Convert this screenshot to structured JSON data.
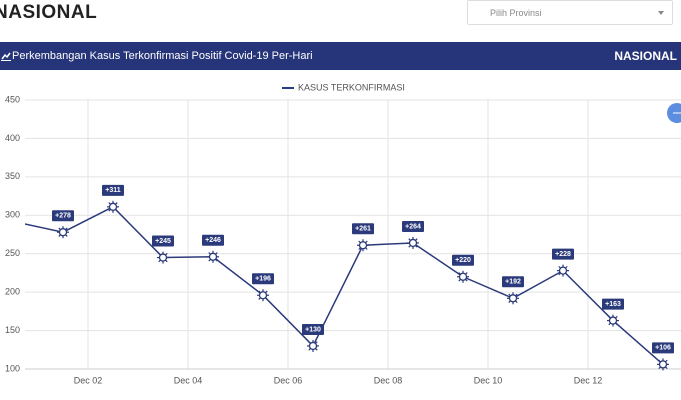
{
  "header": {
    "title": "NASIONAL",
    "select_placeholder": "Pilih Provinsi"
  },
  "panel": {
    "title": "Perkembangan Kasus Terkonfirmasi Positif Covid-19 Per-Hari",
    "region": "NASIONAL"
  },
  "chart_data": {
    "type": "line",
    "categories": [
      null,
      null,
      null,
      null,
      null,
      null,
      null,
      null,
      null,
      null,
      null,
      null,
      null,
      null
    ],
    "series": [
      {
        "name": "KASUS TERKONFIRMASI",
        "color": "#2b3a7a",
        "values": [
          292,
          278,
          311,
          245,
          246,
          196,
          130,
          261,
          264,
          220,
          192,
          228,
          163,
          106
        ],
        "value_labels": [
          null,
          "+278",
          "+311",
          "+245",
          "+246",
          "+196",
          "+130",
          "+261",
          "+264",
          "+220",
          "+192",
          "+228",
          "+163",
          "+106"
        ]
      }
    ],
    "xlim": [
      0.24,
      13.36
    ],
    "xticks": [
      {
        "value": 1.5,
        "label": "Dec 02"
      },
      {
        "value": 3.5,
        "label": "Dec 04"
      },
      {
        "value": 5.5,
        "label": "Dec 06"
      },
      {
        "value": 7.5,
        "label": "Dec 08"
      },
      {
        "value": 9.5,
        "label": "Dec 10"
      },
      {
        "value": 11.5,
        "label": "Dec 12"
      }
    ],
    "ylim": [
      100,
      450
    ],
    "yticks": [
      100,
      150,
      200,
      250,
      300,
      350,
      400,
      450
    ],
    "grid": true
  }
}
